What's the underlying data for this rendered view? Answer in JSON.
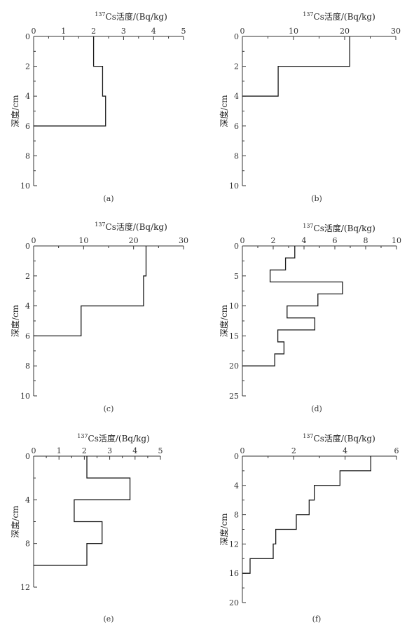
{
  "chart_data": [
    {
      "type": "line",
      "panel": "(a)",
      "xlabel": "137Cs活度/(Bq/kg)",
      "ylabel": "深度/cm",
      "xlim": [
        0,
        5
      ],
      "ylim": [
        0,
        10
      ],
      "xticks": [
        "0",
        "1",
        "2",
        "3",
        "4",
        "5"
      ],
      "yticks": [
        "0",
        "2",
        "4",
        "6",
        "8",
        "10"
      ],
      "x_axis_position": "top",
      "y_inverted": true,
      "profile": [
        {
          "depth_top": 0,
          "depth_bottom": 2,
          "activity": 2.0
        },
        {
          "depth_top": 2,
          "depth_bottom": 4,
          "activity": 2.3
        },
        {
          "depth_top": 4,
          "depth_bottom": 6,
          "activity": 2.4
        }
      ]
    },
    {
      "type": "line",
      "panel": "(b)",
      "xlabel": "137Cs活度/(Bq/kg)",
      "ylabel": "深度/cm",
      "xlim": [
        0,
        30
      ],
      "ylim": [
        0,
        10
      ],
      "xticks": [
        "0",
        "10",
        "20",
        "30"
      ],
      "yticks": [
        "0",
        "2",
        "4",
        "6",
        "8",
        "10"
      ],
      "x_axis_position": "top",
      "y_inverted": true,
      "profile": [
        {
          "depth_top": 0,
          "depth_bottom": 2,
          "activity": 21
        },
        {
          "depth_top": 2,
          "depth_bottom": 4,
          "activity": 7
        }
      ]
    },
    {
      "type": "line",
      "panel": "(c)",
      "xlabel": "137Cs活度/(Bq/kg)",
      "ylabel": "深度/cm",
      "xlim": [
        0,
        30
      ],
      "ylim": [
        0,
        10
      ],
      "xticks": [
        "0",
        "10",
        "20",
        "30"
      ],
      "yticks": [
        "0",
        "2",
        "4",
        "6",
        "8",
        "10"
      ],
      "x_axis_position": "top",
      "y_inverted": true,
      "profile": [
        {
          "depth_top": 0,
          "depth_bottom": 2,
          "activity": 22.5
        },
        {
          "depth_top": 2,
          "depth_bottom": 4,
          "activity": 22
        },
        {
          "depth_top": 4,
          "depth_bottom": 6,
          "activity": 9.5
        }
      ]
    },
    {
      "type": "line",
      "panel": "(d)",
      "xlabel": "137Cs活度/(Bq/kg)",
      "ylabel": "深度/cm",
      "xlim": [
        0,
        10
      ],
      "ylim": [
        0,
        25
      ],
      "xticks": [
        "0",
        "2",
        "4",
        "6",
        "8",
        "10"
      ],
      "yticks": [
        "0",
        "5",
        "10",
        "15",
        "20",
        "25"
      ],
      "x_axis_position": "top",
      "y_inverted": true,
      "profile": [
        {
          "depth_top": 0,
          "depth_bottom": 2,
          "activity": 3.4
        },
        {
          "depth_top": 2,
          "depth_bottom": 4,
          "activity": 2.8
        },
        {
          "depth_top": 4,
          "depth_bottom": 6,
          "activity": 1.8
        },
        {
          "depth_top": 6,
          "depth_bottom": 8,
          "activity": 6.5
        },
        {
          "depth_top": 8,
          "depth_bottom": 10,
          "activity": 4.9
        },
        {
          "depth_top": 10,
          "depth_bottom": 12,
          "activity": 2.9
        },
        {
          "depth_top": 12,
          "depth_bottom": 14,
          "activity": 4.7
        },
        {
          "depth_top": 14,
          "depth_bottom": 16,
          "activity": 2.3
        },
        {
          "depth_top": 16,
          "depth_bottom": 18,
          "activity": 2.7
        },
        {
          "depth_top": 18,
          "depth_bottom": 20,
          "activity": 2.1
        }
      ]
    },
    {
      "type": "line",
      "panel": "(e)",
      "xlabel": "137Cs活度/(Bq/kg)",
      "ylabel": "深度/cm",
      "xlim": [
        0,
        5
      ],
      "ylim": [
        0,
        12
      ],
      "xticks": [
        "0",
        "1",
        "2",
        "3",
        "4",
        "5"
      ],
      "yticks": [
        "0",
        "4",
        "8",
        "12"
      ],
      "x_axis_position": "top",
      "y_inverted": true,
      "profile": [
        {
          "depth_top": 0,
          "depth_bottom": 2,
          "activity": 2.1
        },
        {
          "depth_top": 2,
          "depth_bottom": 4,
          "activity": 3.8
        },
        {
          "depth_top": 4,
          "depth_bottom": 6,
          "activity": 1.6
        },
        {
          "depth_top": 6,
          "depth_bottom": 8,
          "activity": 2.7
        },
        {
          "depth_top": 8,
          "depth_bottom": 10,
          "activity": 2.1
        }
      ]
    },
    {
      "type": "line",
      "panel": "(f)",
      "xlabel": "137Cs活度/(Bq/kg)",
      "ylabel": "深度/cm",
      "xlim": [
        0,
        6
      ],
      "ylim": [
        0,
        20
      ],
      "xticks": [
        "0",
        "2",
        "4",
        "6"
      ],
      "yticks": [
        "0",
        "4",
        "8",
        "12",
        "16",
        "20"
      ],
      "x_axis_position": "top",
      "y_inverted": true,
      "profile": [
        {
          "depth_top": 0,
          "depth_bottom": 2,
          "activity": 5.0
        },
        {
          "depth_top": 2,
          "depth_bottom": 4,
          "activity": 3.8
        },
        {
          "depth_top": 4,
          "depth_bottom": 6,
          "activity": 2.8
        },
        {
          "depth_top": 6,
          "depth_bottom": 8,
          "activity": 2.6
        },
        {
          "depth_top": 8,
          "depth_bottom": 10,
          "activity": 2.1
        },
        {
          "depth_top": 10,
          "depth_bottom": 12,
          "activity": 1.3
        },
        {
          "depth_top": 12,
          "depth_bottom": 14,
          "activity": 1.2
        },
        {
          "depth_top": 14,
          "depth_bottom": 16,
          "activity": 0.3
        }
      ]
    }
  ]
}
